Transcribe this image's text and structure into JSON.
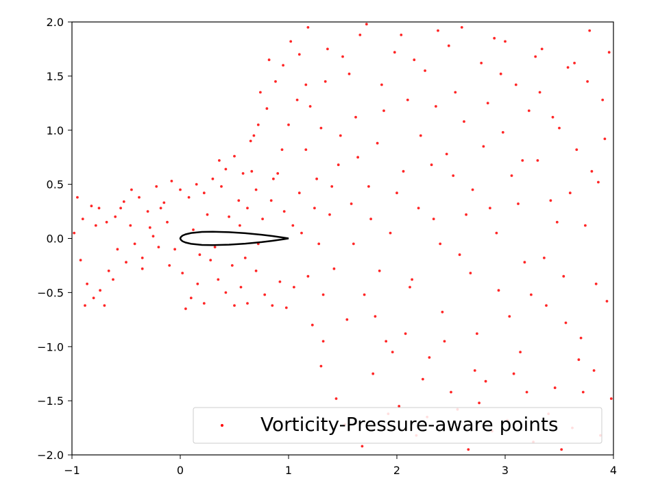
{
  "chart_data": {
    "type": "scatter",
    "title": "",
    "xlabel": "",
    "ylabel": "",
    "xlim": [
      -1,
      4
    ],
    "ylim": [
      -2,
      2
    ],
    "xticks": [
      -1,
      0,
      1,
      2,
      3,
      4
    ],
    "yticks": [
      -2.0,
      -1.5,
      -1.0,
      -0.5,
      0.0,
      0.5,
      1.0,
      1.5,
      2.0
    ],
    "xtick_labels": [
      "−1",
      "0",
      "1",
      "2",
      "3",
      "4"
    ],
    "ytick_labels": [
      "−2.0",
      "−1.5",
      "−1.0",
      "−0.5",
      "0.0",
      "0.5",
      "1.0",
      "1.5",
      "2.0"
    ],
    "grid": false,
    "legend_position": "lower-right",
    "series": [
      {
        "name": "Vorticity-Pressure-aware points",
        "color": "#ff0000",
        "marker": "circle",
        "points": [
          [
            -0.95,
            0.38
          ],
          [
            -0.9,
            0.18
          ],
          [
            -0.82,
            0.3
          ],
          [
            -0.75,
            0.28
          ],
          [
            -0.68,
            0.15
          ],
          [
            -0.6,
            0.2
          ],
          [
            -0.52,
            0.34
          ],
          [
            -0.46,
            0.12
          ],
          [
            -0.38,
            0.38
          ],
          [
            -0.3,
            0.25
          ],
          [
            -0.22,
            0.48
          ],
          [
            -0.15,
            0.33
          ],
          [
            -0.08,
            0.53
          ],
          [
            0.0,
            0.45
          ],
          [
            0.08,
            0.38
          ],
          [
            0.15,
            0.5
          ],
          [
            0.22,
            0.42
          ],
          [
            0.3,
            0.55
          ],
          [
            0.36,
            0.72
          ],
          [
            0.42,
            0.64
          ],
          [
            0.5,
            0.76
          ],
          [
            0.58,
            0.6
          ],
          [
            0.65,
            0.9
          ],
          [
            0.72,
            1.05
          ],
          [
            0.8,
            1.2
          ],
          [
            0.88,
            1.45
          ],
          [
            0.95,
            1.6
          ],
          [
            1.02,
            1.82
          ],
          [
            1.1,
            1.7
          ],
          [
            1.18,
            1.95
          ],
          [
            -0.98,
            0.05
          ],
          [
            -0.92,
            -0.2
          ],
          [
            -0.86,
            -0.42
          ],
          [
            -0.8,
            -0.55
          ],
          [
            -0.74,
            -0.48
          ],
          [
            -0.66,
            -0.3
          ],
          [
            -0.58,
            -0.1
          ],
          [
            -0.5,
            -0.22
          ],
          [
            -0.42,
            -0.05
          ],
          [
            -0.35,
            -0.18
          ],
          [
            -0.28,
            0.1
          ],
          [
            -0.2,
            -0.08
          ],
          [
            -0.12,
            0.15
          ],
          [
            -0.05,
            -0.1
          ],
          [
            0.02,
            -0.32
          ],
          [
            0.1,
            -0.55
          ],
          [
            0.16,
            -0.42
          ],
          [
            0.22,
            -0.6
          ],
          [
            0.28,
            -0.2
          ],
          [
            0.35,
            -0.38
          ],
          [
            0.42,
            -0.5
          ],
          [
            0.5,
            -0.62
          ],
          [
            0.56,
            -0.45
          ],
          [
            0.62,
            -0.6
          ],
          [
            0.7,
            -0.3
          ],
          [
            0.78,
            -0.52
          ],
          [
            0.85,
            -0.62
          ],
          [
            0.92,
            -0.4
          ],
          [
            0.98,
            -0.64
          ],
          [
            1.05,
            -0.45
          ],
          [
            0.45,
            0.2
          ],
          [
            0.55,
            0.12
          ],
          [
            0.62,
            0.28
          ],
          [
            0.7,
            0.45
          ],
          [
            0.76,
            0.18
          ],
          [
            0.84,
            0.35
          ],
          [
            0.9,
            0.6
          ],
          [
            0.96,
            0.25
          ],
          [
            1.04,
            0.12
          ],
          [
            1.1,
            0.42
          ],
          [
            1.16,
            0.82
          ],
          [
            1.2,
            1.22
          ],
          [
            1.26,
            0.55
          ],
          [
            1.3,
            1.02
          ],
          [
            1.34,
            1.45
          ],
          [
            1.38,
            0.22
          ],
          [
            1.42,
            -0.28
          ],
          [
            1.46,
            0.68
          ],
          [
            1.5,
            1.68
          ],
          [
            1.54,
            -0.75
          ],
          [
            1.58,
            0.32
          ],
          [
            1.62,
            1.12
          ],
          [
            1.66,
            1.88
          ],
          [
            1.7,
            -0.52
          ],
          [
            1.74,
            0.48
          ],
          [
            1.78,
            -1.25
          ],
          [
            1.82,
            0.88
          ],
          [
            1.86,
            1.42
          ],
          [
            1.9,
            -0.95
          ],
          [
            1.94,
            0.05
          ],
          [
            1.98,
            1.72
          ],
          [
            2.02,
            -1.55
          ],
          [
            2.06,
            0.62
          ],
          [
            2.1,
            1.28
          ],
          [
            2.14,
            -0.38
          ],
          [
            2.18,
            -1.82
          ],
          [
            2.22,
            0.95
          ],
          [
            2.26,
            1.55
          ],
          [
            2.3,
            -1.1
          ],
          [
            2.34,
            0.18
          ],
          [
            2.38,
            1.92
          ],
          [
            2.42,
            -0.68
          ],
          [
            2.46,
            0.78
          ],
          [
            2.5,
            -1.42
          ],
          [
            2.54,
            1.35
          ],
          [
            2.58,
            -0.15
          ],
          [
            2.62,
            1.08
          ],
          [
            2.66,
            -1.95
          ],
          [
            2.7,
            0.45
          ],
          [
            2.74,
            -0.88
          ],
          [
            2.78,
            1.62
          ],
          [
            2.82,
            -1.32
          ],
          [
            2.86,
            0.28
          ],
          [
            2.9,
            1.85
          ],
          [
            2.94,
            -0.48
          ],
          [
            2.98,
            0.98
          ],
          [
            3.02,
            -1.68
          ],
          [
            3.06,
            0.58
          ],
          [
            3.1,
            1.42
          ],
          [
            3.14,
            -1.05
          ],
          [
            3.18,
            -0.22
          ],
          [
            3.22,
            1.18
          ],
          [
            3.26,
            -1.88
          ],
          [
            3.3,
            0.72
          ],
          [
            3.34,
            1.75
          ],
          [
            3.38,
            -0.62
          ],
          [
            3.42,
            0.35
          ],
          [
            3.46,
            -1.38
          ],
          [
            3.5,
            1.02
          ],
          [
            3.54,
            -0.35
          ],
          [
            3.58,
            1.58
          ],
          [
            3.62,
            -1.75
          ],
          [
            3.66,
            0.82
          ],
          [
            3.7,
            -0.92
          ],
          [
            3.74,
            0.12
          ],
          [
            3.78,
            1.92
          ],
          [
            3.82,
            -1.22
          ],
          [
            3.86,
            0.52
          ],
          [
            3.9,
            1.28
          ],
          [
            3.94,
            -0.58
          ],
          [
            3.98,
            -1.48
          ],
          [
            1.44,
            -1.48
          ],
          [
            1.52,
            -1.72
          ],
          [
            1.6,
            -0.05
          ],
          [
            1.68,
            -1.92
          ],
          [
            1.76,
            0.18
          ],
          [
            1.84,
            -0.3
          ],
          [
            1.92,
            -1.62
          ],
          [
            2.0,
            0.42
          ],
          [
            2.08,
            -0.88
          ],
          [
            2.16,
            1.65
          ],
          [
            2.24,
            -1.3
          ],
          [
            2.32,
            0.68
          ],
          [
            2.4,
            -0.05
          ],
          [
            2.48,
            1.78
          ],
          [
            2.56,
            -1.58
          ],
          [
            2.64,
            0.22
          ],
          [
            2.72,
            -1.22
          ],
          [
            2.8,
            0.85
          ],
          [
            2.88,
            -1.78
          ],
          [
            2.96,
            1.52
          ],
          [
            3.04,
            -0.72
          ],
          [
            3.12,
            0.32
          ],
          [
            3.2,
            -1.42
          ],
          [
            3.28,
            1.68
          ],
          [
            3.36,
            -0.18
          ],
          [
            3.44,
            1.12
          ],
          [
            3.52,
            -1.95
          ],
          [
            3.6,
            0.42
          ],
          [
            3.68,
            -1.12
          ],
          [
            3.76,
            1.45
          ],
          [
            3.84,
            -0.42
          ],
          [
            3.92,
            0.92
          ],
          [
            1.36,
            1.75
          ],
          [
            1.48,
            0.95
          ],
          [
            1.56,
            1.52
          ],
          [
            1.64,
            0.75
          ],
          [
            1.72,
            1.98
          ],
          [
            1.8,
            -0.72
          ],
          [
            1.88,
            1.18
          ],
          [
            1.96,
            -1.05
          ],
          [
            2.04,
            1.88
          ],
          [
            2.12,
            -0.45
          ],
          [
            2.2,
            0.28
          ],
          [
            2.28,
            -1.65
          ],
          [
            2.36,
            1.22
          ],
          [
            2.44,
            -0.95
          ],
          [
            2.52,
            0.58
          ],
          [
            2.6,
            1.95
          ],
          [
            2.68,
            -0.32
          ],
          [
            2.76,
            -1.52
          ],
          [
            2.84,
            1.25
          ],
          [
            2.92,
            0.05
          ],
          [
            3.0,
            1.82
          ],
          [
            3.08,
            -1.25
          ],
          [
            3.16,
            0.72
          ],
          [
            3.24,
            -0.52
          ],
          [
            3.32,
            1.35
          ],
          [
            3.4,
            -1.62
          ],
          [
            3.48,
            0.15
          ],
          [
            3.56,
            -0.78
          ],
          [
            3.64,
            1.62
          ],
          [
            3.72,
            -1.42
          ],
          [
            3.8,
            0.62
          ],
          [
            3.88,
            -1.82
          ],
          [
            3.96,
            1.72
          ],
          [
            1.28,
            -0.05
          ],
          [
            1.32,
            -0.52
          ],
          [
            1.4,
            0.48
          ],
          [
            1.32,
            -0.95
          ],
          [
            1.24,
            0.28
          ],
          [
            1.18,
            -0.35
          ],
          [
            1.12,
            0.05
          ],
          [
            1.22,
            -0.8
          ],
          [
            1.3,
            -1.18
          ],
          [
            1.16,
            1.42
          ],
          [
            1.08,
            1.28
          ],
          [
            1.0,
            1.05
          ],
          [
            0.94,
            0.82
          ],
          [
            0.86,
            0.55
          ],
          [
            0.82,
            1.65
          ],
          [
            0.74,
            1.35
          ],
          [
            0.68,
            0.95
          ],
          [
            -0.88,
            -0.62
          ],
          [
            -0.78,
            0.12
          ],
          [
            -0.7,
            -0.62
          ],
          [
            -0.62,
            -0.38
          ],
          [
            -0.55,
            0.28
          ],
          [
            -0.45,
            0.45
          ],
          [
            -0.35,
            -0.28
          ],
          [
            -0.25,
            0.02
          ],
          [
            -0.18,
            0.28
          ],
          [
            -0.1,
            -0.25
          ],
          [
            0.05,
            -0.65
          ],
          [
            0.12,
            0.08
          ],
          [
            0.18,
            -0.15
          ],
          [
            0.25,
            0.22
          ],
          [
            0.32,
            -0.08
          ],
          [
            0.38,
            0.48
          ],
          [
            0.48,
            -0.25
          ],
          [
            0.54,
            0.35
          ],
          [
            0.6,
            -0.18
          ],
          [
            0.66,
            0.62
          ],
          [
            0.72,
            -0.05
          ]
        ]
      }
    ]
  },
  "airfoil": {
    "name": "airfoil-outline",
    "color": "#000000",
    "points": [
      [
        1.0,
        0.0
      ],
      [
        0.95,
        0.008
      ],
      [
        0.85,
        0.022
      ],
      [
        0.75,
        0.034
      ],
      [
        0.6,
        0.048
      ],
      [
        0.45,
        0.058
      ],
      [
        0.3,
        0.062
      ],
      [
        0.2,
        0.06
      ],
      [
        0.1,
        0.05
      ],
      [
        0.05,
        0.038
      ],
      [
        0.02,
        0.026
      ],
      [
        0.005,
        0.012
      ],
      [
        0.0,
        0.0
      ],
      [
        0.005,
        -0.012
      ],
      [
        0.02,
        -0.026
      ],
      [
        0.05,
        -0.038
      ],
      [
        0.1,
        -0.05
      ],
      [
        0.2,
        -0.06
      ],
      [
        0.3,
        -0.062
      ],
      [
        0.45,
        -0.058
      ],
      [
        0.6,
        -0.048
      ],
      [
        0.75,
        -0.034
      ],
      [
        0.85,
        -0.022
      ],
      [
        0.95,
        -0.008
      ],
      [
        1.0,
        0.0
      ]
    ]
  }
}
